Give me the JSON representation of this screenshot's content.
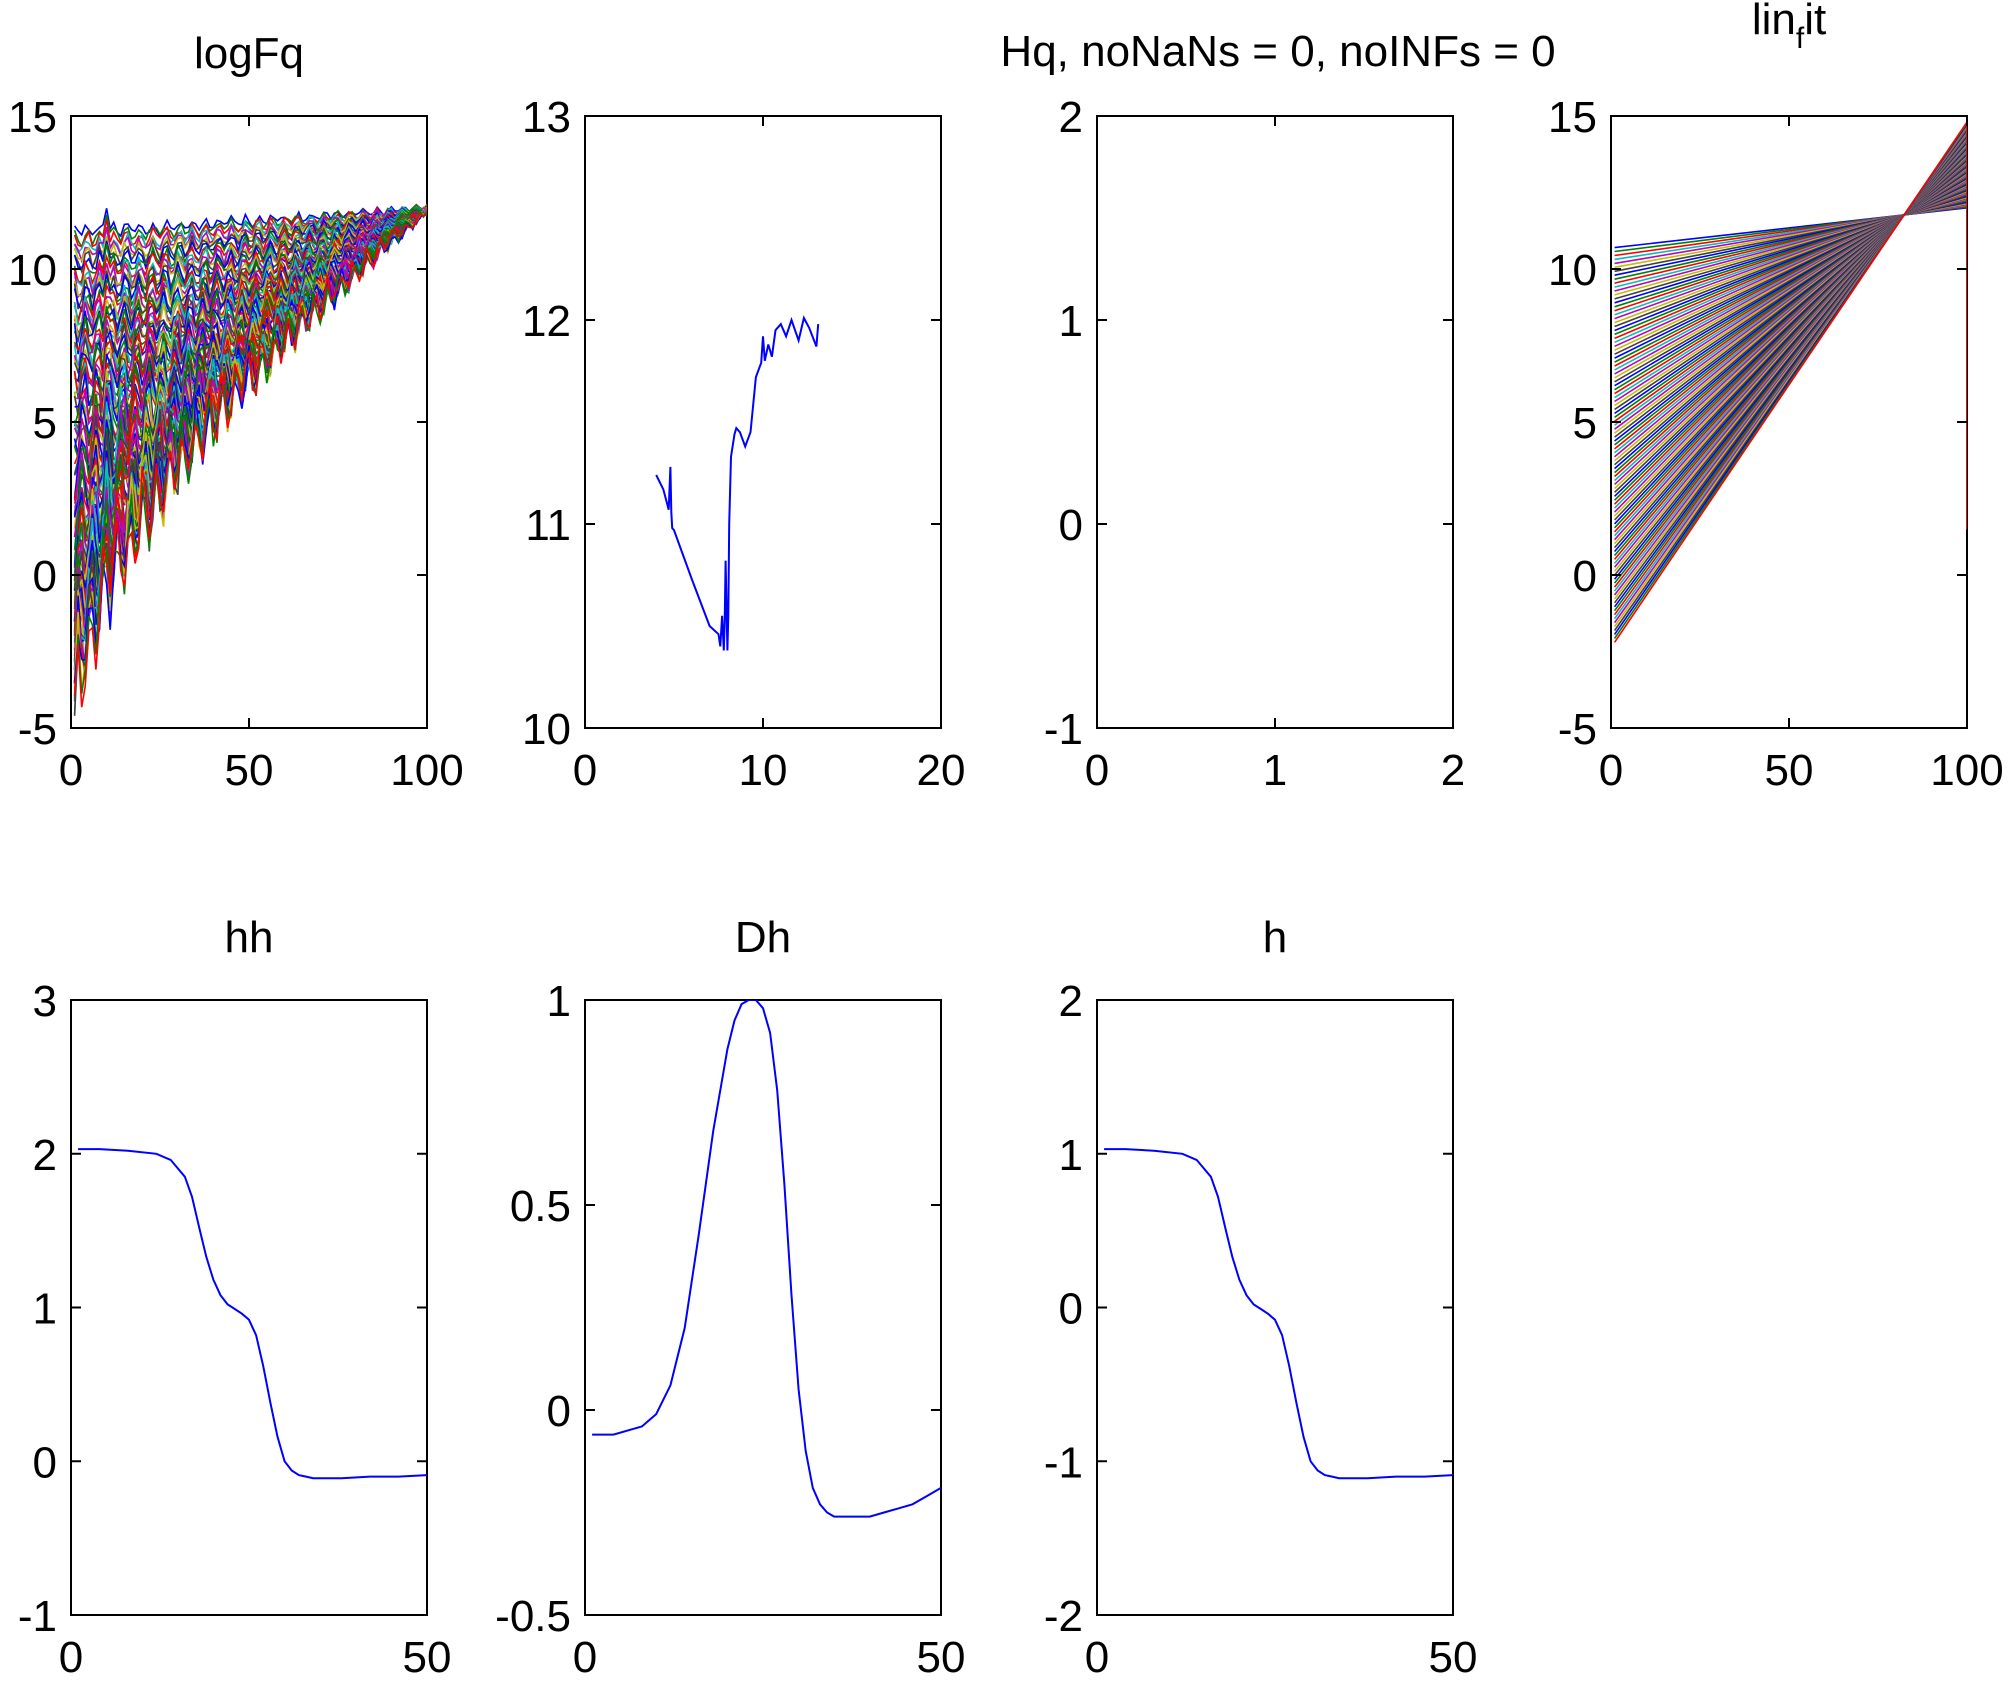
{
  "figure": {
    "suptitle": "Hq, noNaNs = 0, noINFs = 0"
  },
  "chart_data": [
    {
      "id": "logFq",
      "type": "line",
      "title": "logFq",
      "xlim": [
        0,
        100
      ],
      "ylim": [
        -5,
        15
      ],
      "xticks": [
        0,
        50,
        100
      ],
      "yticks": [
        -5,
        0,
        5,
        10,
        15
      ],
      "family": {
        "count": 101,
        "x_start": 1,
        "x_end": 101,
        "top_start": 11.2,
        "bottom_start": -4.9,
        "end_value": 12.0,
        "colors": [
          "#0000ff",
          "#008000",
          "#ff0000",
          "#00bfbf",
          "#bf00bf",
          "#bfbf00",
          "#404040"
        ]
      }
    },
    {
      "id": "Hq",
      "type": "line",
      "title": "",
      "xlim": [
        0,
        20
      ],
      "ylim": [
        10,
        13
      ],
      "xticks": [
        0,
        10,
        20
      ],
      "yticks": [
        10,
        11,
        12,
        13
      ],
      "series": [
        {
          "color": "#0000ff",
          "x": [
            4.0,
            4.4,
            4.7,
            4.8,
            4.85,
            4.9,
            5.0,
            6.0,
            7.0,
            7.5,
            7.6,
            7.7,
            7.8,
            7.85,
            7.9,
            8.0,
            8.05,
            8.1,
            8.2,
            8.4,
            8.5,
            8.7,
            9.0,
            9.3,
            9.6,
            9.9,
            10.0,
            10.1,
            10.3,
            10.5,
            10.7,
            11.0,
            11.3,
            11.6,
            12.0,
            12.3,
            12.6,
            13.0,
            13.1
          ],
          "y": [
            11.24,
            11.17,
            11.07,
            11.28,
            11.06,
            10.98,
            10.97,
            10.73,
            10.5,
            10.46,
            10.4,
            10.55,
            10.38,
            10.52,
            10.82,
            10.38,
            10.55,
            11.0,
            11.33,
            11.44,
            11.47,
            11.45,
            11.38,
            11.45,
            11.72,
            11.79,
            11.92,
            11.8,
            11.88,
            11.82,
            11.95,
            11.98,
            11.92,
            12.0,
            11.9,
            12.01,
            11.96,
            11.87,
            11.98
          ]
        }
      ]
    },
    {
      "id": "tau",
      "type": "line",
      "title": "",
      "xlim": [
        0,
        2
      ],
      "ylim": [
        -1,
        2
      ],
      "xticks": [
        0,
        1,
        2
      ],
      "yticks": [
        -1,
        0,
        1,
        2
      ],
      "series": []
    },
    {
      "id": "lin_fit",
      "type": "line",
      "title": "lin",
      "title_sub": "f",
      "title_rest": "it",
      "xlim": [
        0,
        100
      ],
      "ylim": [
        -5,
        15
      ],
      "xticks": [
        0,
        50,
        100
      ],
      "yticks": [
        -5,
        0,
        5,
        10,
        15
      ],
      "family": {
        "count": 101,
        "x_start": 1,
        "x_pivot": 82,
        "x_end": 100,
        "pivot_value": 11.5,
        "top_start": 10.7,
        "bottom_start": -2.2,
        "top_end": 12.0,
        "bottom_end": 14.8,
        "drop_value": 1.5,
        "colors": [
          "#0000ff",
          "#008000",
          "#ff0000",
          "#00bfbf",
          "#bf00bf",
          "#bfbf00",
          "#404040"
        ]
      }
    },
    {
      "id": "hh",
      "type": "line",
      "title": "hh",
      "xlim": [
        0,
        50
      ],
      "ylim": [
        -1,
        3
      ],
      "xticks": [
        0,
        50
      ],
      "yticks": [
        -1,
        0,
        1,
        2,
        3
      ],
      "series": [
        {
          "color": "#0000ff",
          "x": [
            1,
            4,
            8,
            12,
            14,
            16,
            17,
            18,
            19,
            20,
            21,
            22,
            23,
            24,
            25,
            26,
            27,
            28,
            29,
            30,
            31,
            32,
            33,
            34,
            35,
            36,
            38,
            42,
            46,
            50
          ],
          "y": [
            2.03,
            2.03,
            2.02,
            2.0,
            1.96,
            1.85,
            1.72,
            1.52,
            1.33,
            1.18,
            1.08,
            1.02,
            0.99,
            0.96,
            0.92,
            0.82,
            0.62,
            0.38,
            0.16,
            0.0,
            -0.06,
            -0.09,
            -0.1,
            -0.11,
            -0.11,
            -0.11,
            -0.11,
            -0.1,
            -0.1,
            -0.09
          ]
        }
      ]
    },
    {
      "id": "Dh",
      "type": "line",
      "title": "Dh",
      "xlim": [
        0,
        50
      ],
      "ylim": [
        -0.5,
        1
      ],
      "xticks": [
        0,
        50
      ],
      "yticks": [
        -0.5,
        0,
        0.5,
        1
      ],
      "series": [
        {
          "color": "#0000ff",
          "x": [
            1,
            4,
            8,
            10,
            12,
            14,
            16,
            18,
            20,
            21,
            22,
            23,
            24,
            25,
            26,
            27,
            28,
            29,
            30,
            31,
            32,
            33,
            34,
            35,
            36,
            38,
            40,
            42,
            44,
            46,
            48,
            50
          ],
          "y": [
            -0.06,
            -0.06,
            -0.04,
            -0.01,
            0.06,
            0.2,
            0.43,
            0.68,
            0.88,
            0.95,
            0.99,
            1.0,
            1.0,
            0.98,
            0.92,
            0.78,
            0.55,
            0.28,
            0.05,
            -0.1,
            -0.19,
            -0.23,
            -0.25,
            -0.26,
            -0.26,
            -0.26,
            -0.26,
            -0.25,
            -0.24,
            -0.23,
            -0.21,
            -0.19
          ]
        }
      ]
    },
    {
      "id": "h",
      "type": "line",
      "title": "h",
      "xlim": [
        0,
        50
      ],
      "ylim": [
        -2,
        2
      ],
      "xticks": [
        0,
        50
      ],
      "yticks": [
        -2,
        -1,
        0,
        1,
        2
      ],
      "series": [
        {
          "color": "#0000ff",
          "x": [
            1,
            4,
            8,
            12,
            14,
            16,
            17,
            18,
            19,
            20,
            21,
            22,
            23,
            24,
            25,
            26,
            27,
            28,
            29,
            30,
            31,
            32,
            33,
            34,
            35,
            36,
            38,
            42,
            46,
            50
          ],
          "y": [
            1.03,
            1.03,
            1.02,
            1.0,
            0.96,
            0.85,
            0.72,
            0.52,
            0.33,
            0.18,
            0.08,
            0.02,
            -0.01,
            -0.04,
            -0.08,
            -0.18,
            -0.38,
            -0.62,
            -0.84,
            -1.0,
            -1.06,
            -1.09,
            -1.1,
            -1.11,
            -1.11,
            -1.11,
            -1.11,
            -1.1,
            -1.1,
            -1.09
          ]
        }
      ]
    }
  ]
}
